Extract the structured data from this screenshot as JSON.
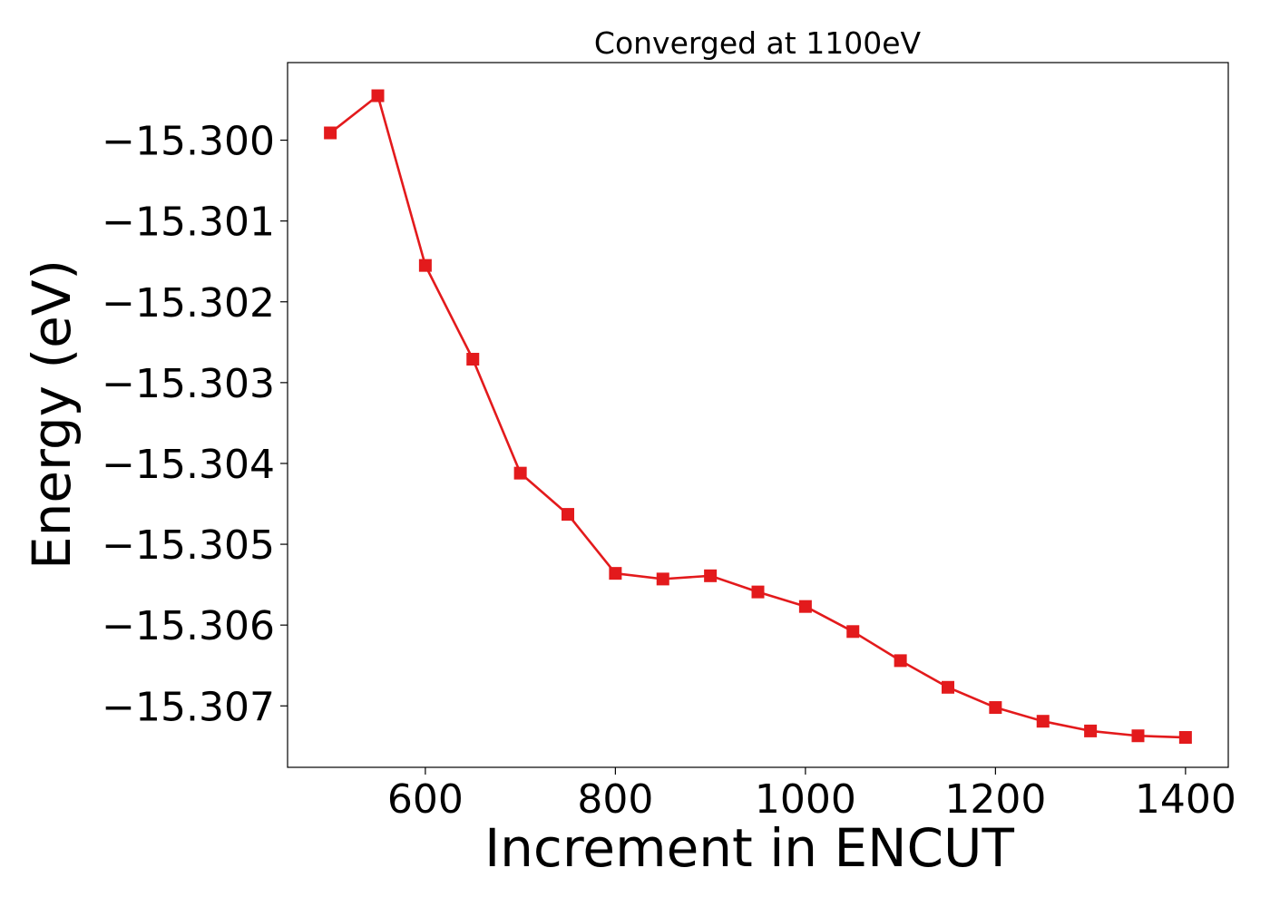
{
  "chart_data": {
    "type": "line",
    "title": "Converged at 1100eV",
    "xlabel": "Increment in ENCUT",
    "ylabel": "Energy (eV)",
    "xlim": [
      455,
      1445
    ],
    "ylim": [
      -15.30776,
      -15.29904
    ],
    "x_ticks": [
      600,
      800,
      1000,
      1200,
      1400
    ],
    "x_tick_labels": [
      "600",
      "800",
      "1000",
      "1200",
      "1400"
    ],
    "y_ticks": [
      -15.3,
      -15.301,
      -15.302,
      -15.303,
      -15.304,
      -15.305,
      -15.306,
      -15.307
    ],
    "y_tick_labels": [
      "−15.300",
      "−15.301",
      "−15.302",
      "−15.303",
      "−15.304",
      "−15.305",
      "−15.306",
      "−15.307"
    ],
    "grid": false,
    "series": [
      {
        "color": "#e31a1c",
        "marker": "square",
        "x": [
          500,
          550,
          600,
          650,
          700,
          750,
          800,
          850,
          900,
          950,
          1000,
          1050,
          1100,
          1150,
          1200,
          1250,
          1300,
          1350,
          1400
        ],
        "y": [
          -15.29991,
          -15.29945,
          -15.30155,
          -15.30271,
          -15.30412,
          -15.30463,
          -15.30536,
          -15.30543,
          -15.30539,
          -15.30559,
          -15.30577,
          -15.30608,
          -15.30644,
          -15.30677,
          -15.30702,
          -15.30719,
          -15.30731,
          -15.30737,
          -15.30739
        ]
      }
    ]
  }
}
